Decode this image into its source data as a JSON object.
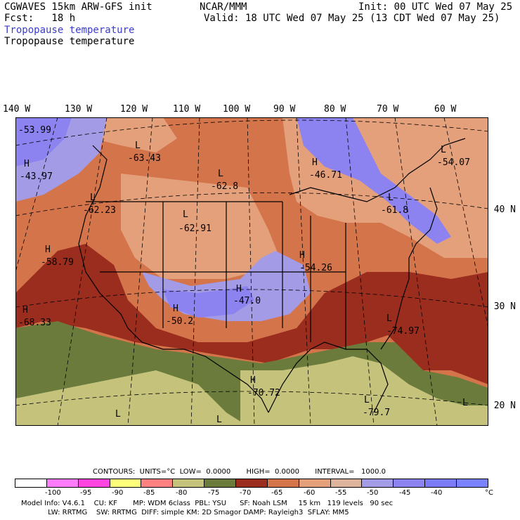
{
  "header": {
    "model_line": "CGWAVES 15km ARW-GFS init",
    "fcst_line": "Fcst:   18 h",
    "field_title_1": "Tropopause temperature",
    "field_title_2": "Tropopause temperature",
    "center": "NCAR/MMM",
    "init_line": "Init: 00 UTC Wed 07 May 25",
    "valid_line": "Valid: 18 UTC Wed 07 May 25 (13 CDT Wed 07 May 25)"
  },
  "longitude_labels": [
    "140 W",
    "130 W",
    "120 W",
    "110 W",
    "100 W",
    "90 W",
    "80 W",
    "70 W",
    "60 W"
  ],
  "latitude_labels": [
    "40 N",
    "30 N",
    "20 N"
  ],
  "map_labels": [
    {
      "mark": "",
      "value": "-53.99"
    },
    {
      "mark": "H",
      "value": "-43.97"
    },
    {
      "mark": "L",
      "value": "-63.43"
    },
    {
      "mark": "L",
      "value": "-62.8"
    },
    {
      "mark": "H",
      "value": "-46.71"
    },
    {
      "mark": "L",
      "value": "-54.07"
    },
    {
      "mark": "L",
      "value": "-62.23"
    },
    {
      "mark": "L",
      "value": "-62.91"
    },
    {
      "mark": "L",
      "value": "-61.8"
    },
    {
      "mark": "H",
      "value": "-58.79"
    },
    {
      "mark": "H",
      "value": "-54.26"
    },
    {
      "mark": "H",
      "value": "-47.0"
    },
    {
      "mark": "H",
      "value": "-68.33"
    },
    {
      "mark": "H",
      "value": "-50.2"
    },
    {
      "mark": "L",
      "value": "-74.97"
    },
    {
      "mark": "H",
      "value": "-70.72"
    },
    {
      "mark": "L",
      "value": "-79.7"
    },
    {
      "mark": "L",
      "value": ""
    },
    {
      "mark": "L",
      "value": ""
    },
    {
      "mark": "L",
      "value": ""
    }
  ],
  "contours_line": "CONTOURS:  UNITS=°C  LOW=  0.0000       HIGH=  0.0000       INTERVAL=   1000.0",
  "colorbar": {
    "colors": [
      "#ffffff",
      "#ff7bff",
      "#ff44e0",
      "#ffff7b",
      "#ff8080",
      "#c4c27b",
      "#6b7b3b",
      "#9b2d1f",
      "#d4744a",
      "#e3a07b",
      "#ddb39b",
      "#a49be6",
      "#8c82f0",
      "#7b7bf5",
      "#7b82ff"
    ],
    "tick_labels": [
      "-100",
      "-95",
      "-90",
      "-85",
      "-80",
      "-75",
      "-70",
      "-65",
      "-60",
      "-55",
      "-50",
      "-45",
      "-40",
      "°C"
    ]
  },
  "footer": {
    "line1": "Model Info: V4.6.1    CU: KF       MP: WDM 6class  PBL: YSU      SF: Noah LSM     15 km   119 levels   90 sec",
    "line2": "            LW: RRTMG    SW: RRTMG  DIFF: simple KM: 2D Smagor DAMP: Rayleigh3  SFLAY: MM5"
  }
}
